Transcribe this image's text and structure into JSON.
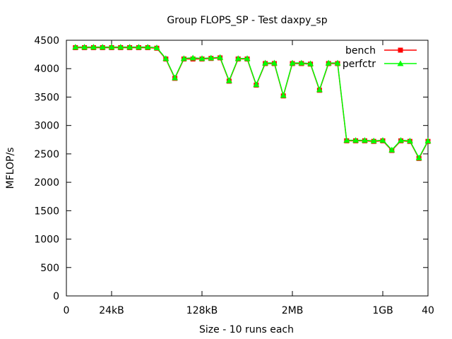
{
  "chart_data": {
    "type": "line",
    "title": "Group FLOPS_SP - Test daxpy_sp",
    "xlabel": "Size - 10 runs each",
    "ylabel": "MFLOP/s",
    "xlim": [
      0,
      40
    ],
    "ylim": [
      0,
      4500
    ],
    "x_ticks": [
      {
        "value": 0,
        "label": "0"
      },
      {
        "value": 5,
        "label": "24kB"
      },
      {
        "value": 15,
        "label": "128kB"
      },
      {
        "value": 25,
        "label": "2MB"
      },
      {
        "value": 35,
        "label": "1GB"
      },
      {
        "value": 40,
        "label": "40"
      }
    ],
    "y_ticks": [
      0,
      500,
      1000,
      1500,
      2000,
      2500,
      3000,
      3500,
      4000,
      4500
    ],
    "grid": false,
    "legend_position": "top-right",
    "x": [
      1,
      2,
      3,
      4,
      5,
      6,
      7,
      8,
      9,
      10,
      11,
      12,
      13,
      14,
      15,
      16,
      17,
      18,
      19,
      20,
      21,
      22,
      23,
      24,
      25,
      26,
      27,
      28,
      29,
      30,
      31,
      32,
      33,
      34,
      35,
      36,
      37,
      38,
      39,
      40
    ],
    "series": [
      {
        "name": "bench",
        "color": "#ff0000",
        "marker": "square",
        "values": [
          4370,
          4370,
          4370,
          4370,
          4370,
          4370,
          4370,
          4370,
          4370,
          4360,
          4170,
          3830,
          4170,
          4170,
          4170,
          4180,
          4190,
          3780,
          4170,
          4170,
          3710,
          4090,
          4090,
          3520,
          4090,
          4090,
          4080,
          3620,
          4090,
          4090,
          2730,
          2730,
          2730,
          2720,
          2730,
          2560,
          2730,
          2720,
          2420,
          2720
        ]
      },
      {
        "name": "perfctr",
        "color": "#00ff00",
        "marker": "triangle",
        "values": [
          4380,
          4380,
          4380,
          4380,
          4380,
          4380,
          4380,
          4380,
          4380,
          4370,
          4180,
          3840,
          4180,
          4190,
          4180,
          4190,
          4200,
          3790,
          4180,
          4180,
          3720,
          4100,
          4100,
          3530,
          4100,
          4100,
          4090,
          3630,
          4100,
          4100,
          2740,
          2740,
          2740,
          2730,
          2740,
          2570,
          2740,
          2730,
          2430,
          2730
        ]
      }
    ]
  }
}
